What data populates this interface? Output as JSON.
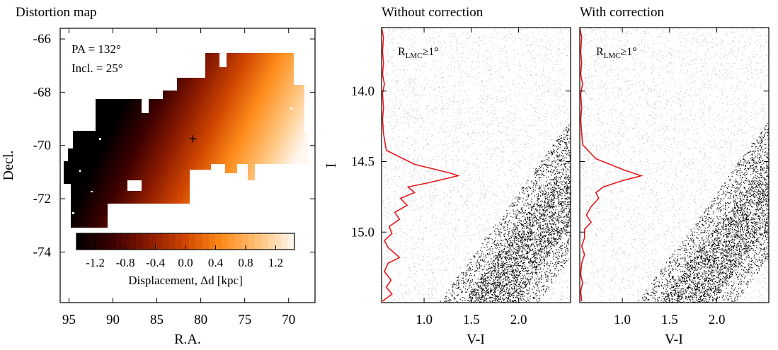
{
  "chart_data": [
    {
      "type": "heatmap",
      "title": "Distortion map",
      "xlabel": "R.A.",
      "ylabel": "Decl.",
      "xlim": [
        96,
        67
      ],
      "ylim": [
        -75.9,
        -65.6
      ],
      "xticks": [
        95,
        90,
        85,
        80,
        75,
        70
      ],
      "yticks": [
        -66,
        -68,
        -70,
        -72,
        -74
      ],
      "annotations": [
        "PA = 132°",
        "Incl. = 25°"
      ],
      "center_marker": {
        "ra": 80.9,
        "dec": -69.75,
        "symbol": "+"
      },
      "colorbar": {
        "label": "Displacement, Δd [kpc]",
        "range": [
          -1.45,
          1.45
        ],
        "ticks": [
          -1.2,
          -0.8,
          -0.4,
          0.0,
          0.4,
          0.8,
          1.2
        ],
        "tick_labels": [
          "-1.2",
          "-0.8",
          "-0.4",
          "0.0",
          "0.4",
          "0.8",
          "1.2"
        ],
        "colormap": [
          "#000000",
          "#3c0000",
          "#8a1a00",
          "#d04600",
          "#ff8c1a",
          "#ffc278",
          "#fff8f0"
        ]
      }
    },
    {
      "type": "scatter",
      "title": "Without correction",
      "xlabel": "V-I",
      "ylabel": "I",
      "xlim": [
        0.55,
        2.55
      ],
      "ylim": [
        15.5,
        13.55
      ],
      "xticks": [
        1.0,
        1.5,
        2.0
      ],
      "xtick_labels": [
        "1.0",
        "1.5",
        "2.0"
      ],
      "yticks": [
        14.0,
        14.5,
        15.0
      ],
      "ytick_labels": [
        "14.0",
        "14.5",
        "15.0"
      ],
      "annotation": "R_LMC ≥ 1°",
      "annotation_base": "R",
      "annotation_sub": "LMC",
      "annotation_tail": "≥1°",
      "series": [
        {
          "name": "all stars (grey)",
          "color": "#c8c8c8"
        },
        {
          "name": "red clump selection (black)",
          "color": "#000000"
        },
        {
          "name": "I-band luminosity function",
          "color": "#e8171b",
          "points": [
            [
              0.55,
              13.55
            ],
            [
              0.57,
              13.62
            ],
            [
              0.56,
              13.72
            ],
            [
              0.57,
              13.8
            ],
            [
              0.56,
              13.88
            ],
            [
              0.58,
              13.95
            ],
            [
              0.56,
              14.02
            ],
            [
              0.57,
              14.12
            ],
            [
              0.56,
              14.2
            ],
            [
              0.57,
              14.3
            ],
            [
              0.6,
              14.42
            ],
            [
              0.9,
              14.52
            ],
            [
              1.27,
              14.58
            ],
            [
              1.36,
              14.6
            ],
            [
              1.05,
              14.65
            ],
            [
              0.83,
              14.68
            ],
            [
              0.9,
              14.72
            ],
            [
              0.75,
              14.76
            ],
            [
              0.82,
              14.81
            ],
            [
              0.69,
              14.86
            ],
            [
              0.74,
              14.91
            ],
            [
              0.63,
              14.96
            ],
            [
              0.66,
              15.01
            ],
            [
              0.58,
              15.06
            ],
            [
              0.62,
              15.11
            ],
            [
              0.74,
              15.18
            ],
            [
              0.62,
              15.22
            ],
            [
              0.58,
              15.28
            ],
            [
              0.65,
              15.34
            ],
            [
              0.6,
              15.39
            ],
            [
              0.66,
              15.44
            ],
            [
              0.56,
              15.49
            ]
          ]
        }
      ]
    },
    {
      "type": "scatter",
      "title": "With correction",
      "xlabel": "V-I",
      "xlim": [
        0.55,
        2.55
      ],
      "ylim": [
        15.5,
        13.55
      ],
      "xticks": [
        1.0,
        1.5,
        2.0
      ],
      "xtick_labels": [
        "1.0",
        "1.5",
        "2.0"
      ],
      "annotation": "R_LMC ≥ 1°",
      "annotation_base": "R",
      "annotation_sub": "LMC",
      "annotation_tail": "≥1°",
      "series": [
        {
          "name": "all stars (grey)",
          "color": "#c8c8c8"
        },
        {
          "name": "red clump selection (black)",
          "color": "#000000"
        },
        {
          "name": "I-band luminosity function",
          "color": "#e8171b",
          "points": [
            [
              0.55,
              13.55
            ],
            [
              0.57,
              13.62
            ],
            [
              0.56,
              13.72
            ],
            [
              0.57,
              13.8
            ],
            [
              0.56,
              13.88
            ],
            [
              0.58,
              13.95
            ],
            [
              0.56,
              14.02
            ],
            [
              0.57,
              14.12
            ],
            [
              0.56,
              14.2
            ],
            [
              0.57,
              14.3
            ],
            [
              0.58,
              14.38
            ],
            [
              0.72,
              14.48
            ],
            [
              1.02,
              14.56
            ],
            [
              1.2,
              14.6
            ],
            [
              0.98,
              14.64
            ],
            [
              0.8,
              14.68
            ],
            [
              0.72,
              14.72
            ],
            [
              0.75,
              14.76
            ],
            [
              0.67,
              14.82
            ],
            [
              0.62,
              14.88
            ],
            [
              0.67,
              14.93
            ],
            [
              0.6,
              14.98
            ],
            [
              0.6,
              15.04
            ],
            [
              0.57,
              15.1
            ],
            [
              0.6,
              15.16
            ],
            [
              0.57,
              15.22
            ],
            [
              0.56,
              15.3
            ],
            [
              0.58,
              15.36
            ],
            [
              0.56,
              15.42
            ],
            [
              0.57,
              15.49
            ]
          ]
        }
      ]
    }
  ]
}
